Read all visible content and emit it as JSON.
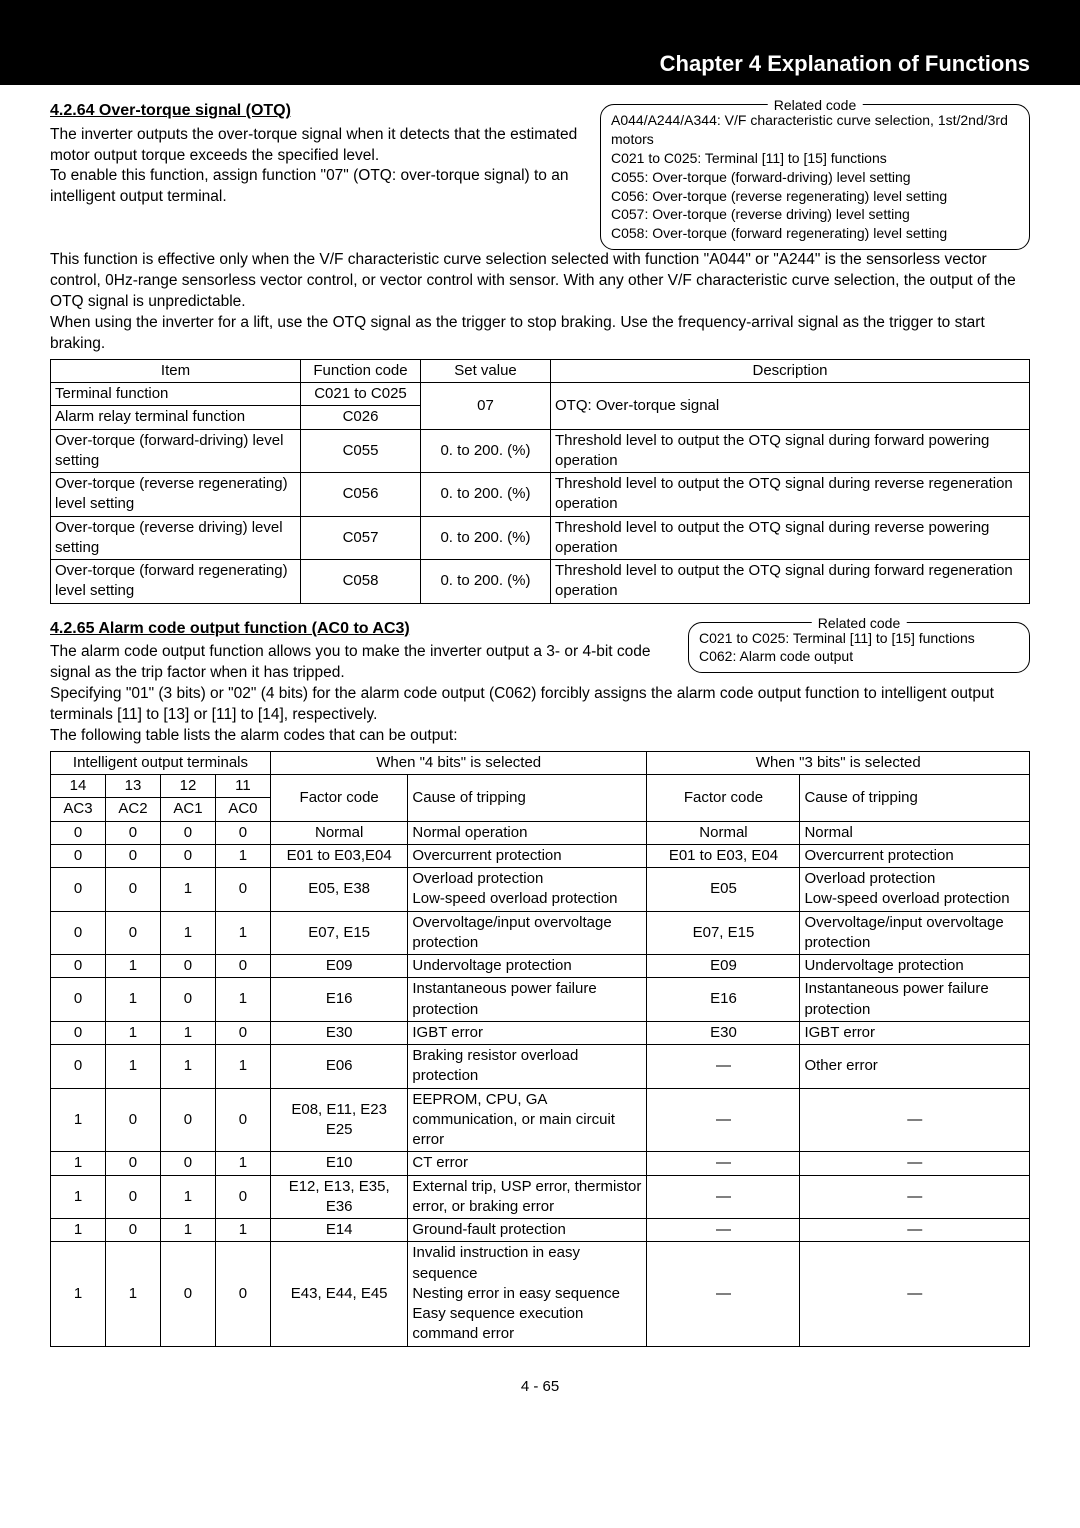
{
  "chapter_title": "Chapter 4 Explanation of Functions",
  "s1": {
    "title": "4.2.64 Over-torque signal (OTQ)",
    "p1": "The inverter outputs the over-torque signal when it detects that the estimated motor output torque exceeds the specified level.",
    "p2": "To enable this function, assign function \"07\" (OTQ: over-torque signal) to an intelligent output terminal.",
    "p3": "This function is effective only when the V/F characteristic curve selection selected with function \"A044\" or \"A244\" is the sensorless vector control, 0Hz-range sensorless vector control, or vector control with sensor. With any other V/F characteristic curve selection, the output of the OTQ signal is unpredictable.",
    "p4": "When using the inverter for a lift, use the OTQ signal as the trigger to stop braking. Use the frequency-arrival signal as the trigger to start braking.",
    "related_label": "Related code",
    "related": "A044/A244/A344: V/F characteristic curve selection, 1st/2nd/3rd motors\nC021 to C025: Terminal [11] to [15] functions\nC055: Over-torque (forward-driving) level setting\nC056: Over-torque (reverse regenerating) level setting\nC057: Over-torque (reverse driving) level setting\nC058: Over-torque (forward regenerating) level setting",
    "table": {
      "header": [
        "Item",
        "Function code",
        "Set value",
        "Description"
      ],
      "r1": [
        "Terminal function",
        "C021 to C025"
      ],
      "r2": [
        "Alarm relay terminal function",
        "C026"
      ],
      "r12_set": "07",
      "r12_desc": "OTQ: Over-torque signal",
      "r3": [
        "Over-torque (forward-driving) level setting",
        "C055",
        "0. to 200. (%)",
        "Threshold level to output the OTQ signal during forward powering operation"
      ],
      "r4": [
        "Over-torque (reverse regenerating) level setting",
        "C056",
        "0. to 200. (%)",
        "Threshold level to output the OTQ signal during reverse regeneration operation"
      ],
      "r5": [
        "Over-torque (reverse driving) level setting",
        "C057",
        "0. to 200. (%)",
        "Threshold level to output the OTQ signal during reverse powering operation"
      ],
      "r6": [
        "Over-torque (forward regenerating) level setting",
        "C058",
        "0. to 200. (%)",
        "Threshold level to output the OTQ signal during forward regeneration operation"
      ]
    }
  },
  "s2": {
    "title": "4.2.65 Alarm code output function (AC0 to AC3)",
    "p1": "The alarm code output function allows you to make the inverter output a 3- or 4-bit code signal as the trip factor when it has tripped.",
    "p2": "Specifying \"01\" (3 bits) or \"02\" (4 bits) for the alarm code output (C062) forcibly assigns the alarm code output function to intelligent output terminals [11] to [13] or [11] to [14], respectively.",
    "p3": "The following table lists the alarm codes that can be output:",
    "related_label": "Related code",
    "related": "C021 to C025: Terminal [11] to [15] functions\nC062: Alarm code output",
    "table": {
      "h_iot": "Intelligent output terminals",
      "h_4bits": "When \"4 bits\" is selected",
      "h_3bits": "When \"3 bits\" is selected",
      "h_14": "14",
      "h_13": "13",
      "h_12": "12",
      "h_11": "11",
      "h_ac3": "AC3",
      "h_ac2": "AC2",
      "h_ac1": "AC1",
      "h_ac0": "AC0",
      "h_fc": "Factor code",
      "h_cause": "Cause of tripping",
      "rows": [
        [
          "0",
          "0",
          "0",
          "0",
          "Normal",
          "Normal operation",
          "Normal",
          "Normal"
        ],
        [
          "0",
          "0",
          "0",
          "1",
          "E01 to E03,E04",
          "Overcurrent protection",
          "E01 to E03, E04",
          "Overcurrent protection"
        ],
        [
          "0",
          "0",
          "1",
          "0",
          "E05, E38",
          "Overload protection\nLow-speed overload protection",
          "E05",
          "Overload protection\nLow-speed overload protection"
        ],
        [
          "0",
          "0",
          "1",
          "1",
          "E07, E15",
          "Overvoltage/input overvoltage protection",
          "E07, E15",
          "Overvoltage/input overvoltage protection"
        ],
        [
          "0",
          "1",
          "0",
          "0",
          "E09",
          "Undervoltage protection",
          "E09",
          "Undervoltage protection"
        ],
        [
          "0",
          "1",
          "0",
          "1",
          "E16",
          "Instantaneous power failure protection",
          "E16",
          "Instantaneous power failure protection"
        ],
        [
          "0",
          "1",
          "1",
          "0",
          "E30",
          "IGBT error",
          "E30",
          "IGBT error"
        ],
        [
          "0",
          "1",
          "1",
          "1",
          "E06",
          "Braking resistor overload protection",
          "—",
          "Other error"
        ],
        [
          "1",
          "0",
          "0",
          "0",
          "E08, E11, E23\nE25",
          "EEPROM, CPU, GA communication, or main circuit error",
          "—",
          "—"
        ],
        [
          "1",
          "0",
          "0",
          "1",
          "E10",
          "CT error",
          "—",
          "—"
        ],
        [
          "1",
          "0",
          "1",
          "0",
          "E12, E13, E35,\nE36",
          "External trip, USP error, thermistor error, or braking error",
          "—",
          "—"
        ],
        [
          "1",
          "0",
          "1",
          "1",
          "E14",
          "Ground-fault protection",
          "—",
          "—"
        ],
        [
          "1",
          "1",
          "0",
          "0",
          "E43, E44, E45",
          "Invalid instruction in easy sequence\nNesting error in easy sequence\nEasy sequence execution command error",
          "—",
          "—"
        ]
      ]
    }
  },
  "page_number": "4 - 65"
}
